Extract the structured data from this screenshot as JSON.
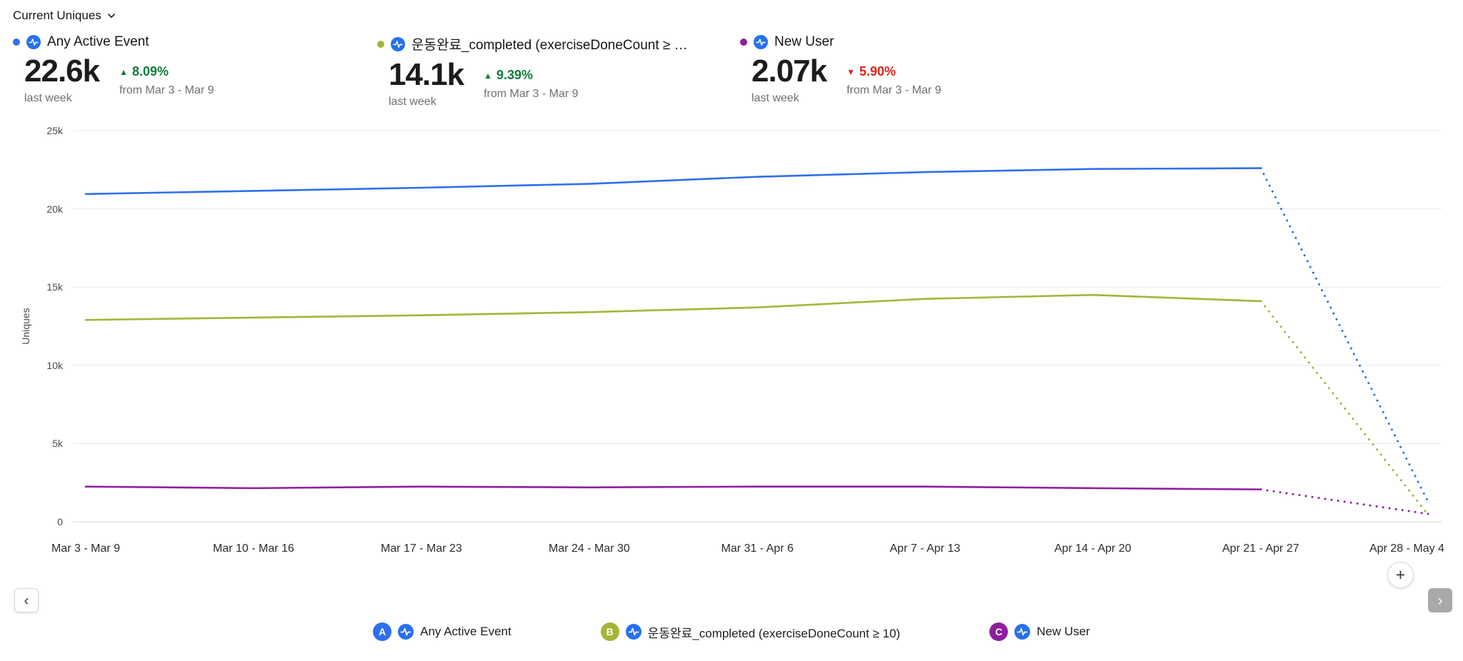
{
  "controls": {
    "metric_selector_label": "Current Uniques"
  },
  "summaries": [
    {
      "letter": "A",
      "color": "#2f6fed",
      "label": "Any Active Event",
      "value": "22.6k",
      "period": "last week",
      "arrow": "▲",
      "delta": "8.09%",
      "delta_direction": "up",
      "delta_note": "from Mar 3 - Mar 9"
    },
    {
      "letter": "B",
      "color": "#a6b437",
      "label": "운동완료_completed (exerciseDoneCount ≥ …",
      "value": "14.1k",
      "period": "last week",
      "arrow": "▲",
      "delta": "9.39%",
      "delta_direction": "up",
      "delta_note": "from Mar 3 - Mar 9"
    },
    {
      "letter": "C",
      "color": "#8e1f9e",
      "label": "New User",
      "value": "2.07k",
      "period": "last week",
      "arrow": "▼",
      "delta": "5.90%",
      "delta_direction": "down",
      "delta_note": "from Mar 3 - Mar 9"
    }
  ],
  "chart_data": {
    "type": "line",
    "ylabel": "Uniques",
    "ylim": [
      0,
      25000
    ],
    "yticks": [
      {
        "value": 0,
        "label": "0"
      },
      {
        "value": 5000,
        "label": "5k"
      },
      {
        "value": 10000,
        "label": "10k"
      },
      {
        "value": 15000,
        "label": "15k"
      },
      {
        "value": 20000,
        "label": "20k"
      },
      {
        "value": 25000,
        "label": "25k"
      }
    ],
    "categories": [
      "Mar 3 - Mar 9",
      "Mar 10 - Mar 16",
      "Mar 17 - Mar 23",
      "Mar 24 - Mar 30",
      "Mar 31 - Apr 6",
      "Apr 7 - Apr 13",
      "Apr 14 - Apr 20",
      "Apr 21 - Apr 27",
      "Apr 28 - May 4"
    ],
    "dotted_from_index": 7,
    "grid": "horizontal",
    "series": [
      {
        "name": "Any Active Event",
        "color": "#2f6fed",
        "values": [
          20950,
          21150,
          21350,
          21600,
          22050,
          22350,
          22550,
          22600,
          1200
        ]
      },
      {
        "name": "운동완료_completed (exerciseDoneCount ≥ 10)",
        "color": "#a6b437",
        "values": [
          12900,
          13050,
          13200,
          13400,
          13700,
          14250,
          14500,
          14100,
          400
        ]
      },
      {
        "name": "New User",
        "color": "#8e1f9e",
        "values": [
          2250,
          2150,
          2250,
          2200,
          2250,
          2250,
          2150,
          2070,
          500
        ]
      }
    ]
  },
  "legend": [
    {
      "letter": "A",
      "color": "#2f6fed",
      "label": "Any Active Event"
    },
    {
      "letter": "B",
      "color": "#a6b437",
      "label": "운동완료_completed (exerciseDoneCount ≥ 10)"
    },
    {
      "letter": "C",
      "color": "#8e1f9e",
      "label": "New User"
    }
  ],
  "buttons": {
    "prev": "‹",
    "next": "›",
    "zoom_in": "+"
  }
}
